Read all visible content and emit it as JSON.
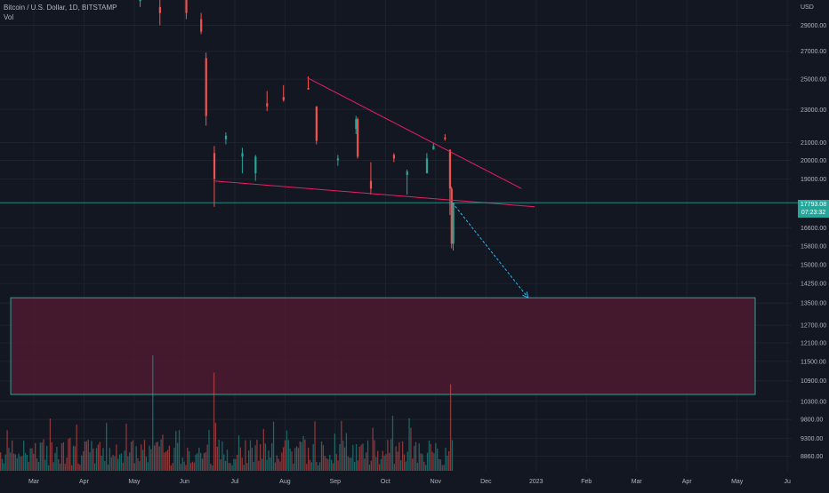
{
  "legend": {
    "symbol_line": "Bitcoin / U.S. Dollar, 1D, BITSTAMP",
    "volume_label": "Vol"
  },
  "colors": {
    "background": "#131722",
    "up": "#26a69a",
    "down": "#ef5350",
    "trendline": "#e91e63",
    "arrow": "#29b6f6",
    "zone_fill": "#4a1a30",
    "zone_border": "#26a69a",
    "grid": "#1e222d",
    "axis_text": "#b2b5be"
  },
  "price_badge": {
    "price": "17793.08",
    "countdown": "07:23:32"
  },
  "chart_data": {
    "type": "candlestick",
    "symbol": "Bitcoin / U.S. Dollar",
    "timeframe": "1D",
    "exchange": "BITSTAMP",
    "y_axis_unit": "USD",
    "y_scale": "log",
    "y_ticks": [
      "29000.00",
      "27000.00",
      "25000.00",
      "23000.00",
      "21000.00",
      "20000.00",
      "19000.00",
      "17793.08",
      "16600.00",
      "15800.00",
      "15000.00",
      "14250.00",
      "13500.00",
      "12700.00",
      "12100.00",
      "11500.00",
      "10900.00",
      "10300.00",
      "9800.00",
      "9300.00",
      "8860.00"
    ],
    "x_ticks": [
      "Mar",
      "Apr",
      "May",
      "Jun",
      "Jul",
      "Aug",
      "Sep",
      "Oct",
      "Nov",
      "Dec",
      "2023",
      "Feb",
      "Mar",
      "Apr",
      "May",
      "Ju"
    ],
    "current_price": 17793.08,
    "price_ohlc": [
      {
        "date": "2022-05-04",
        "values": [
          31000,
          40000,
          30500,
          39000
        ]
      },
      {
        "date": "2022-05-16",
        "values": [
          30500,
          31500,
          29000,
          30000
        ]
      },
      {
        "date": "2022-06-01",
        "values": [
          31800,
          32000,
          29500,
          30000
        ]
      },
      {
        "date": "2022-06-10",
        "values": [
          29500,
          30000,
          28300,
          28500
        ]
      },
      {
        "date": "2022-06-13",
        "values": [
          26500,
          26900,
          22000,
          22600
        ]
      },
      {
        "date": "2022-06-18",
        "values": [
          20400,
          20800,
          17600,
          19000
        ]
      },
      {
        "date": "2022-06-25",
        "values": [
          21200,
          21600,
          20900,
          21400
        ]
      },
      {
        "date": "2022-07-05",
        "values": [
          20200,
          20700,
          19300,
          20400
        ]
      },
      {
        "date": "2022-07-13",
        "values": [
          19300,
          20300,
          18900,
          20200
        ]
      },
      {
        "date": "2022-07-20",
        "values": [
          23400,
          24200,
          22900,
          23200
        ]
      },
      {
        "date": "2022-07-30",
        "values": [
          23800,
          24600,
          23500,
          23600
        ]
      },
      {
        "date": "2022-08-14",
        "values": [
          24400,
          25200,
          24300,
          24300
        ]
      },
      {
        "date": "2022-08-19",
        "values": [
          23200,
          23200,
          20900,
          21100
        ]
      },
      {
        "date": "2022-09-01",
        "values": [
          20000,
          20300,
          19700,
          20100
        ]
      },
      {
        "date": "2022-09-12",
        "values": [
          21800,
          22600,
          21500,
          22400
        ]
      },
      {
        "date": "2022-09-13",
        "values": [
          22400,
          22500,
          20100,
          20200
        ]
      },
      {
        "date": "2022-09-21",
        "values": [
          18900,
          19900,
          18200,
          18500
        ]
      },
      {
        "date": "2022-10-05",
        "values": [
          20300,
          20400,
          19900,
          20100
        ]
      },
      {
        "date": "2022-10-13",
        "values": [
          19200,
          19500,
          18200,
          19400
        ]
      },
      {
        "date": "2022-10-25",
        "values": [
          19300,
          20400,
          19300,
          20100
        ]
      },
      {
        "date": "2022-10-29",
        "values": [
          20600,
          21000,
          20600,
          20800
        ]
      },
      {
        "date": "2022-11-05",
        "values": [
          21300,
          21500,
          21100,
          21200
        ]
      },
      {
        "date": "2022-11-08",
        "values": [
          20600,
          20600,
          17200,
          18500
        ]
      },
      {
        "date": "2022-11-09",
        "values": [
          18500,
          18600,
          15700,
          15900
        ]
      },
      {
        "date": "2022-11-10",
        "values": [
          15900,
          17800,
          15600,
          17793
        ]
      }
    ],
    "trendlines": [
      {
        "name": "descending resistance",
        "from": {
          "date": "2022-08-14",
          "value": 25100
        },
        "to": {
          "date": "2022-12-22",
          "value": 18500
        }
      },
      {
        "name": "lower support",
        "from": {
          "date": "2022-06-18",
          "value": 18900
        },
        "to": {
          "date": "2022-12-30",
          "value": 17600
        }
      }
    ],
    "projection_arrow": {
      "from": {
        "date": "2022-11-10",
        "value": 17800
      },
      "to": {
        "date": "2022-12-26",
        "value": 13700
      }
    },
    "target_zone": {
      "from_date": "2022-02-15",
      "to_date": "2023-05-15",
      "top": 13700,
      "bottom": 10500
    },
    "horizontal_line": 17793.08,
    "volume": {
      "spikes": [
        {
          "date": "2022-05-12",
          "relative": 1.0
        },
        {
          "date": "2022-06-18",
          "relative": 0.85
        },
        {
          "date": "2022-11-09",
          "relative": 0.75
        }
      ]
    }
  }
}
